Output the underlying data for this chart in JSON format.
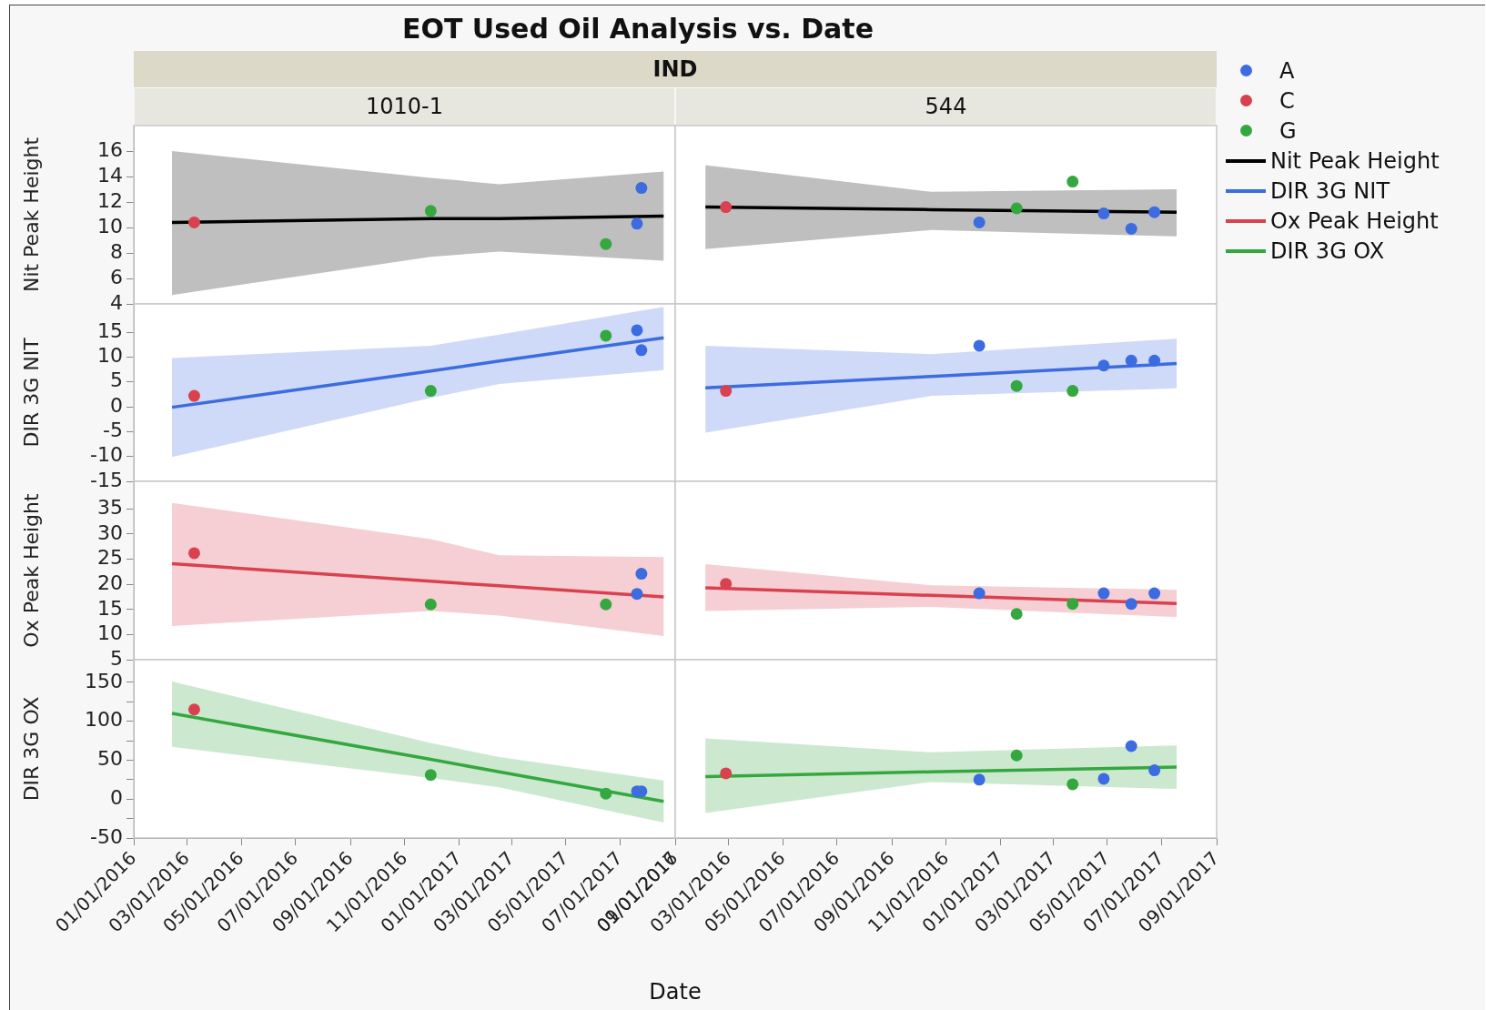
{
  "chart_data": [
    {
      "type": "scatter",
      "title": "EOT Used Oil Analysis vs. Date",
      "annotations": [
        "IND"
      ],
      "subtitle": "1010-1",
      "ylabel": "Nit Peak Height",
      "xlim": [
        "2016-01-01",
        "2017-09-01"
      ],
      "ylim": [
        4,
        18
      ],
      "yticks": [
        4,
        6,
        8,
        10,
        12,
        14,
        16
      ],
      "tick_labels": "y",
      "marker": "circle",
      "series": [
        {
          "color": "#3d6ce0",
          "x": [
            "2017-07-20",
            "2017-07-25"
          ],
          "values": [
            10.3,
            13.1
          ]
        },
        {
          "color": "#d9414f",
          "x": [
            "2016-03-09"
          ],
          "values": [
            10.4
          ]
        },
        {
          "color": "#34a83f",
          "x": [
            "2016-11-30",
            "2017-06-15"
          ],
          "values": [
            11.3,
            8.7
          ]
        },
        {
          "type": "line",
          "marker": "none",
          "color": "#000000",
          "x": [
            "2016-02-13",
            "2016-11-30",
            "2017-02-15",
            "2017-08-19"
          ],
          "values": [
            10.4,
            10.7,
            10.7,
            10.9
          ],
          "lower": [
            4.7,
            7.7,
            8.1,
            7.4
          ],
          "upper": [
            16.0,
            13.9,
            13.4,
            14.4
          ]
        }
      ]
    },
    {
      "type": "scatter",
      "subtitle": "544",
      "legend": "right",
      "xlim": [
        "2016-01-01",
        "2017-09-01"
      ],
      "ylim": [
        4,
        18
      ],
      "tick_labels": false,
      "marker": "circle",
      "series": [
        {
          "name": "A",
          "color": "#3d6ce0",
          "x": [
            "2016-12-08",
            "2017-04-27",
            "2017-05-28",
            "2017-06-23"
          ],
          "values": [
            10.4,
            11.1,
            9.9,
            11.2
          ]
        },
        {
          "name": "C",
          "color": "#d9414f",
          "x": [
            "2016-02-27"
          ],
          "values": [
            11.6
          ]
        },
        {
          "name": "G",
          "color": "#34a83f",
          "x": [
            "2017-01-19",
            "2017-03-23"
          ],
          "values": [
            11.5,
            13.6
          ]
        },
        {
          "name": "Nit Peak Height",
          "type": "line",
          "marker": "none",
          "color": "#000000",
          "x": [
            "2016-02-04",
            "2016-10-15",
            "2017-07-18"
          ],
          "values": [
            11.6,
            11.4,
            11.2
          ],
          "lower": [
            8.3,
            9.8,
            9.3
          ],
          "upper": [
            14.9,
            12.8,
            13.0
          ]
        }
      ]
    },
    {
      "type": "scatter",
      "ylabel": "DIR 3G NIT",
      "xlim": [
        "2016-01-01",
        "2017-09-01"
      ],
      "ylim": [
        -15,
        20.7
      ],
      "yticks": [
        -15,
        -10,
        -5,
        0,
        5,
        10,
        15
      ],
      "tick_labels": "y",
      "marker": "circle",
      "series": [
        {
          "color": "#3d6ce0",
          "x": [
            "2017-07-20",
            "2017-07-25"
          ],
          "values": [
            15.4,
            11.4
          ]
        },
        {
          "color": "#d9414f",
          "x": [
            "2016-03-09"
          ],
          "values": [
            2.2
          ]
        },
        {
          "color": "#34a83f",
          "x": [
            "2016-11-30",
            "2017-06-15"
          ],
          "values": [
            3.2,
            14.3
          ]
        },
        {
          "type": "line",
          "marker": "none",
          "color": "#3d6ce0",
          "x": [
            "2016-02-13",
            "2016-11-30",
            "2017-02-15",
            "2017-08-19"
          ],
          "values": [
            -0.1,
            7.2,
            9.2,
            13.9
          ],
          "lower": [
            -10.1,
            1.8,
            4.6,
            7.4
          ],
          "upper": [
            9.8,
            12.3,
            14.5,
            20.1
          ]
        }
      ]
    },
    {
      "type": "scatter",
      "legend": "right",
      "xlim": [
        "2016-01-01",
        "2017-09-01"
      ],
      "ylim": [
        -15,
        20.7
      ],
      "tick_labels": false,
      "marker": "circle",
      "series": [
        {
          "color": "#3d6ce0",
          "x": [
            "2016-12-08",
            "2017-04-27",
            "2017-05-28",
            "2017-06-23"
          ],
          "values": [
            12.3,
            8.3,
            9.3,
            9.3
          ]
        },
        {
          "color": "#d9414f",
          "x": [
            "2016-02-27"
          ],
          "values": [
            3.2
          ]
        },
        {
          "color": "#34a83f",
          "x": [
            "2017-01-19",
            "2017-03-23"
          ],
          "values": [
            4.2,
            3.2
          ]
        },
        {
          "name": "DIR 3G NIT",
          "type": "line",
          "marker": "none",
          "color": "#3d6ce0",
          "x": [
            "2016-02-04",
            "2016-10-15",
            "2017-07-18"
          ],
          "values": [
            3.8,
            6.1,
            8.7
          ],
          "lower": [
            -5.2,
            2.2,
            3.7
          ],
          "upper": [
            12.3,
            10.6,
            13.7
          ]
        }
      ]
    },
    {
      "type": "scatter",
      "ylabel": "Ox Peak Height",
      "xlim": [
        "2016-01-01",
        "2017-09-01"
      ],
      "ylim": [
        5,
        40.5
      ],
      "yticks": [
        5,
        10,
        15,
        20,
        25,
        30,
        35
      ],
      "tick_labels": "y",
      "marker": "circle",
      "series": [
        {
          "color": "#3d6ce0",
          "x": [
            "2017-07-20",
            "2017-07-25"
          ],
          "values": [
            18.1,
            22.1
          ]
        },
        {
          "color": "#d9414f",
          "x": [
            "2016-03-09"
          ],
          "values": [
            26.2
          ]
        },
        {
          "color": "#34a83f",
          "x": [
            "2016-11-30",
            "2017-06-15"
          ],
          "values": [
            16.0,
            16.0
          ]
        },
        {
          "type": "line",
          "marker": "none",
          "color": "#d9414f",
          "x": [
            "2016-02-13",
            "2016-11-30",
            "2017-02-15",
            "2017-08-19"
          ],
          "values": [
            24.1,
            20.6,
            19.7,
            17.5
          ],
          "lower": [
            11.7,
            14.7,
            13.8,
            9.7
          ],
          "upper": [
            36.2,
            29.0,
            25.8,
            25.4
          ]
        }
      ]
    },
    {
      "type": "scatter",
      "legend": "right",
      "xlim": [
        "2016-01-01",
        "2017-09-01"
      ],
      "ylim": [
        5,
        40.5
      ],
      "tick_labels": false,
      "marker": "circle",
      "series": [
        {
          "color": "#3d6ce0",
          "x": [
            "2016-12-08",
            "2017-04-27",
            "2017-05-28",
            "2017-06-23"
          ],
          "values": [
            18.2,
            18.2,
            16.1,
            18.2
          ]
        },
        {
          "color": "#d9414f",
          "x": [
            "2016-02-27"
          ],
          "values": [
            20.1
          ]
        },
        {
          "color": "#34a83f",
          "x": [
            "2017-01-19",
            "2017-03-23"
          ],
          "values": [
            14.1,
            16.1
          ]
        },
        {
          "name": "Ox Peak Height",
          "type": "line",
          "marker": "none",
          "color": "#d9414f",
          "x": [
            "2016-02-04",
            "2016-10-15",
            "2017-07-18"
          ],
          "values": [
            19.3,
            17.8,
            16.2
          ],
          "lower": [
            14.7,
            15.5,
            13.5
          ],
          "upper": [
            24.0,
            19.8,
            18.9
          ]
        }
      ]
    },
    {
      "type": "scatter",
      "ylabel": "DIR 3G OX",
      "xlabel": "Date",
      "xlim": [
        "2016-01-01",
        "2017-09-01"
      ],
      "xticks": [
        {
          "value": "2016-01-01",
          "label": "01/01/2016"
        },
        {
          "value": "2016-03-01",
          "label": "03/01/2016"
        },
        {
          "value": "2016-05-01",
          "label": "05/01/2016"
        },
        {
          "value": "2016-07-01",
          "label": "07/01/2016"
        },
        {
          "value": "2016-09-01",
          "label": "09/01/2016"
        },
        {
          "value": "2016-11-01",
          "label": "11/01/2016"
        },
        {
          "value": "2017-01-01",
          "label": "01/01/2017"
        },
        {
          "value": "2017-03-01",
          "label": "03/01/2017"
        },
        {
          "value": "2017-05-01",
          "label": "05/01/2017"
        },
        {
          "value": "2017-07-01",
          "label": "07/01/2017"
        },
        {
          "value": "2017-09-01",
          "label": "09/01/2017"
        }
      ],
      "ylim": [
        -50,
        179
      ],
      "yticks": [
        -50,
        {
          "value": -25,
          "label": null
        },
        0,
        {
          "value": 25,
          "label": null
        },
        50,
        {
          "value": 75,
          "label": null
        },
        100,
        {
          "value": 125,
          "label": null
        },
        150
      ],
      "marker": "circle",
      "series": [
        {
          "color": "#3d6ce0",
          "x": [
            "2017-07-20",
            "2017-07-25"
          ],
          "values": [
            10,
            10
          ]
        },
        {
          "color": "#d9414f",
          "x": [
            "2016-03-09"
          ],
          "values": [
            115
          ]
        },
        {
          "color": "#34a83f",
          "x": [
            "2016-11-30",
            "2017-06-15"
          ],
          "values": [
            31,
            7
          ]
        },
        {
          "type": "line",
          "marker": "none",
          "color": "#34a83f",
          "x": [
            "2016-02-13",
            "2016-11-30",
            "2017-02-15",
            "2017-08-19"
          ],
          "values": [
            110,
            51,
            35,
            -3
          ],
          "lower": [
            67,
            27,
            15,
            -30
          ],
          "upper": [
            151,
            72,
            54,
            24
          ]
        }
      ]
    },
    {
      "type": "scatter",
      "legend": "right",
      "xlim": [
        "2016-01-01",
        "2017-09-01"
      ],
      "xticks": [
        {
          "value": "2016-01-01",
          "label": "01/01/2016"
        },
        {
          "value": "2016-03-01",
          "label": "03/01/2016"
        },
        {
          "value": "2016-05-01",
          "label": "05/01/2016"
        },
        {
          "value": "2016-07-01",
          "label": "07/01/2016"
        },
        {
          "value": "2016-09-01",
          "label": "09/01/2016"
        },
        {
          "value": "2016-11-01",
          "label": "11/01/2016"
        },
        {
          "value": "2017-01-01",
          "label": "01/01/2017"
        },
        {
          "value": "2017-03-01",
          "label": "03/01/2017"
        },
        {
          "value": "2017-05-01",
          "label": "05/01/2017"
        },
        {
          "value": "2017-07-01",
          "label": "07/01/2017"
        },
        {
          "value": "2017-09-01",
          "label": "09/01/2017"
        }
      ],
      "ylim": [
        -50,
        179
      ],
      "tick_labels": "x",
      "marker": "circle",
      "series": [
        {
          "color": "#3d6ce0",
          "x": [
            "2016-12-08",
            "2017-04-27",
            "2017-05-28",
            "2017-06-23"
          ],
          "values": [
            25,
            26,
            68,
            37
          ]
        },
        {
          "color": "#d9414f",
          "x": [
            "2016-02-27"
          ],
          "values": [
            33
          ]
        },
        {
          "color": "#34a83f",
          "x": [
            "2017-01-19",
            "2017-03-23"
          ],
          "values": [
            56,
            19
          ]
        },
        {
          "name": "DIR 3G OX",
          "type": "line",
          "marker": "none",
          "color": "#34a83f",
          "x": [
            "2016-02-04",
            "2016-10-15",
            "2017-07-18"
          ],
          "values": [
            29,
            35,
            41
          ],
          "lower": [
            -18,
            22,
            13
          ],
          "upper": [
            78,
            60,
            69
          ]
        }
      ]
    }
  ]
}
